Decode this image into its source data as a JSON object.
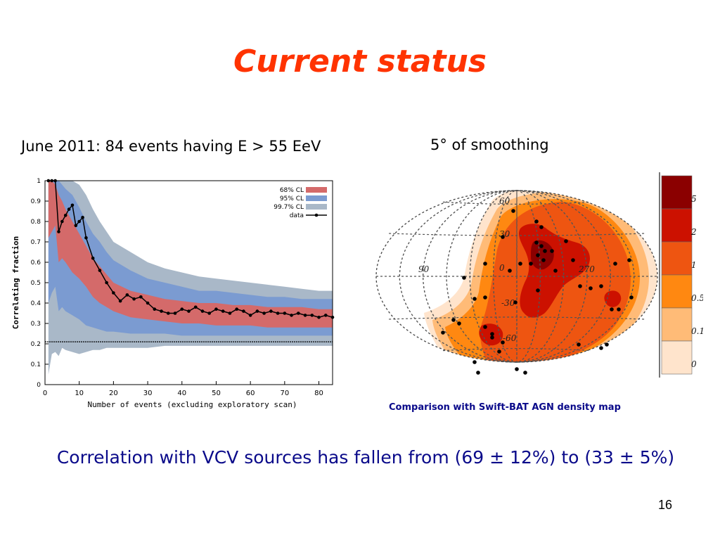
{
  "slide": {
    "title": "Current status",
    "left_caption": "June 2011: 84 events having E > 55 EeV",
    "right_caption": "5° of smoothing",
    "map_caption": "Comparison with Swift-BAT AGN density map",
    "conclusion": "Correlation with VCV sources has fallen from (69 ± 12%) to (33 ± 5%)",
    "page_number": "16"
  },
  "chart_data": [
    {
      "type": "line",
      "xlabel": "Number of events (excluding exploratory scan)",
      "ylabel": "Correlating fraction",
      "xlim": [
        0,
        84
      ],
      "ylim": [
        0,
        1
      ],
      "x_ticks": [
        0,
        10,
        20,
        30,
        40,
        50,
        60,
        70,
        80
      ],
      "y_ticks": [
        0,
        0.1,
        0.2,
        0.3,
        0.4,
        0.5,
        0.6,
        0.7,
        0.8,
        0.9,
        1
      ],
      "reference_line": 0.21,
      "legend": {
        "placement": "top-right",
        "entries": [
          "68% CL",
          "95% CL",
          "99.7% CL",
          "data"
        ]
      },
      "colors": {
        "cl68": "#d46a6a",
        "cl95": "#7b9bd1",
        "cl997": "#a9b8c8",
        "data": "#000000"
      },
      "series": [
        {
          "name": "data",
          "x": [
            1,
            2,
            3,
            4,
            5,
            6,
            7,
            8,
            9,
            10,
            11,
            12,
            14,
            16,
            18,
            20,
            22,
            24,
            26,
            28,
            30,
            32,
            34,
            36,
            38,
            40,
            42,
            44,
            46,
            48,
            50,
            52,
            54,
            56,
            58,
            60,
            62,
            64,
            66,
            68,
            70,
            72,
            74,
            76,
            78,
            80,
            82,
            84
          ],
          "y": [
            1,
            1,
            1,
            0.75,
            0.8,
            0.83,
            0.86,
            0.88,
            0.78,
            0.8,
            0.82,
            0.72,
            0.62,
            0.56,
            0.5,
            0.45,
            0.41,
            0.44,
            0.42,
            0.43,
            0.4,
            0.37,
            0.36,
            0.35,
            0.35,
            0.37,
            0.36,
            0.38,
            0.36,
            0.35,
            0.37,
            0.36,
            0.35,
            0.37,
            0.36,
            0.34,
            0.36,
            0.35,
            0.36,
            0.35,
            0.35,
            0.34,
            0.35,
            0.34,
            0.34,
            0.33,
            0.34,
            0.33
          ]
        }
      ],
      "bands": {
        "x": [
          1,
          2,
          3,
          4,
          5,
          6,
          8,
          10,
          12,
          14,
          16,
          18,
          20,
          25,
          30,
          35,
          40,
          45,
          50,
          55,
          60,
          65,
          70,
          75,
          80,
          84
        ],
        "cl68_low": [
          0.72,
          0.75,
          0.78,
          0.6,
          0.62,
          0.6,
          0.55,
          0.52,
          0.48,
          0.43,
          0.4,
          0.38,
          0.36,
          0.33,
          0.32,
          0.31,
          0.3,
          0.3,
          0.29,
          0.29,
          0.29,
          0.28,
          0.28,
          0.28,
          0.28,
          0.28
        ],
        "cl68_high": [
          1,
          1,
          0.98,
          0.93,
          0.9,
          0.86,
          0.8,
          0.74,
          0.68,
          0.62,
          0.58,
          0.54,
          0.5,
          0.46,
          0.44,
          0.42,
          0.41,
          0.4,
          0.4,
          0.39,
          0.39,
          0.38,
          0.38,
          0.38,
          0.37,
          0.37
        ],
        "cl95_low": [
          0.4,
          0.45,
          0.48,
          0.36,
          0.38,
          0.36,
          0.34,
          0.32,
          0.29,
          0.28,
          0.27,
          0.26,
          0.26,
          0.25,
          0.25,
          0.25,
          0.24,
          0.24,
          0.24,
          0.24,
          0.24,
          0.24,
          0.24,
          0.24,
          0.24,
          0.24
        ],
        "cl95_high": [
          1,
          1,
          1,
          1,
          0.98,
          0.96,
          0.93,
          0.87,
          0.8,
          0.74,
          0.7,
          0.65,
          0.61,
          0.56,
          0.52,
          0.5,
          0.48,
          0.46,
          0.46,
          0.45,
          0.44,
          0.43,
          0.43,
          0.42,
          0.42,
          0.42
        ],
        "cl997_low": [
          0.05,
          0.15,
          0.16,
          0.14,
          0.18,
          0.17,
          0.16,
          0.15,
          0.16,
          0.17,
          0.17,
          0.18,
          0.18,
          0.18,
          0.18,
          0.19,
          0.19,
          0.19,
          0.19,
          0.19,
          0.19,
          0.19,
          0.19,
          0.19,
          0.19,
          0.19
        ],
        "cl997_high": [
          1,
          1,
          1,
          1,
          1,
          1,
          1,
          0.98,
          0.93,
          0.86,
          0.8,
          0.75,
          0.7,
          0.65,
          0.6,
          0.57,
          0.55,
          0.53,
          0.52,
          0.51,
          0.5,
          0.49,
          0.48,
          0.47,
          0.46,
          0.46
        ]
      }
    },
    {
      "type": "heatmap",
      "projection": "Hammer-Aitoff sky map",
      "graticule_labels": [
        "60",
        "30",
        "0",
        "-30",
        "-60",
        "90",
        "270"
      ],
      "colorbar": {
        "labels": [
          "5",
          "2",
          "1",
          "0.5",
          "0.1",
          "0"
        ],
        "colors": [
          "#8b0000",
          "#cc1100",
          "#ee5511",
          "#ff8811",
          "#ffbb77",
          "#ffe4cc"
        ]
      }
    }
  ]
}
